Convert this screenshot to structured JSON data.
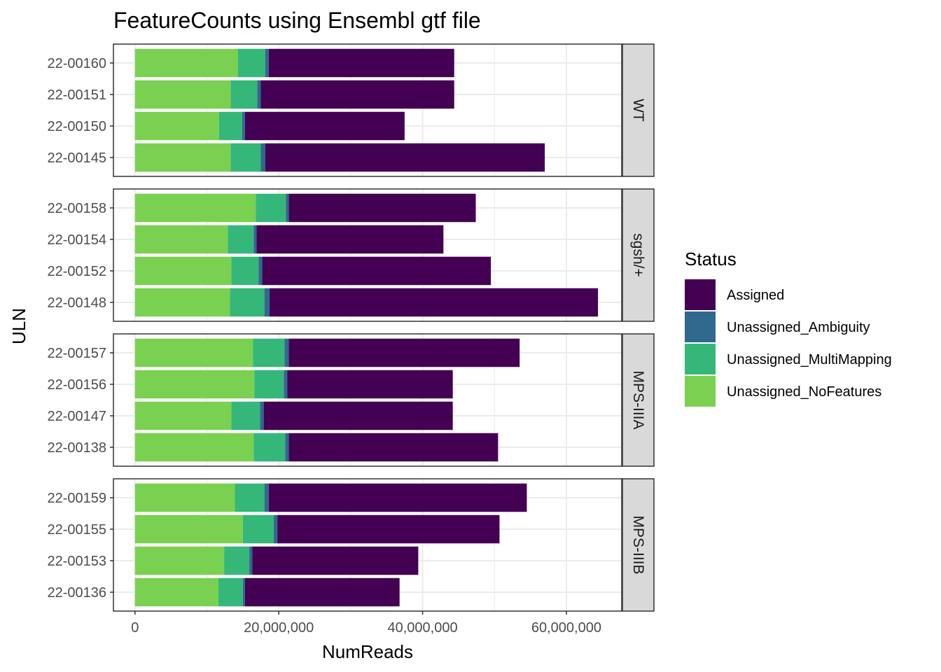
{
  "chart_data": {
    "type": "bar",
    "orientation": "horizontal",
    "stacked": true,
    "title": "FeatureCounts using Ensembl gtf file",
    "xlabel": "NumReads",
    "ylabel": "ULN",
    "xlim": [
      -3000000,
      67700000
    ],
    "x_ticks": [
      0,
      20000000,
      40000000,
      60000000
    ],
    "x_tick_labels": [
      "0",
      "20,000,000",
      "40,000,000",
      "60,000,000"
    ],
    "grid": true,
    "legend": {
      "title": "Status",
      "placement": "right",
      "entries": [
        "Assigned",
        "Unassigned_Ambiguity",
        "Unassigned_MultiMapping",
        "Unassigned_NoFeatures"
      ]
    },
    "series_colors": {
      "Assigned": "#440154",
      "Unassigned_Ambiguity": "#31688E",
      "Unassigned_MultiMapping": "#35B779",
      "Unassigned_NoFeatures": "#7AD151"
    },
    "stack_order": [
      "Unassigned_NoFeatures",
      "Unassigned_MultiMapping",
      "Unassigned_Ambiguity",
      "Assigned"
    ],
    "facets": [
      {
        "label": "WT",
        "samples": [
          {
            "uln": "22-00160",
            "Unassigned_NoFeatures": 14300000,
            "Unassigned_MultiMapping": 3800000,
            "Unassigned_Ambiguity": 500000,
            "Assigned": 25800000
          },
          {
            "uln": "22-00151",
            "Unassigned_NoFeatures": 13300000,
            "Unassigned_MultiMapping": 3700000,
            "Unassigned_Ambiguity": 500000,
            "Assigned": 26900000
          },
          {
            "uln": "22-00150",
            "Unassigned_NoFeatures": 11700000,
            "Unassigned_MultiMapping": 3200000,
            "Unassigned_Ambiguity": 400000,
            "Assigned": 22200000
          },
          {
            "uln": "22-00145",
            "Unassigned_NoFeatures": 13300000,
            "Unassigned_MultiMapping": 4200000,
            "Unassigned_Ambiguity": 600000,
            "Assigned": 38900000
          }
        ]
      },
      {
        "label": "sgsh/+",
        "samples": [
          {
            "uln": "22-00158",
            "Unassigned_NoFeatures": 16800000,
            "Unassigned_MultiMapping": 4200000,
            "Unassigned_Ambiguity": 400000,
            "Assigned": 26000000
          },
          {
            "uln": "22-00154",
            "Unassigned_NoFeatures": 12900000,
            "Unassigned_MultiMapping": 3600000,
            "Unassigned_Ambiguity": 400000,
            "Assigned": 26000000
          },
          {
            "uln": "22-00152",
            "Unassigned_NoFeatures": 13400000,
            "Unassigned_MultiMapping": 3800000,
            "Unassigned_Ambiguity": 500000,
            "Assigned": 31800000
          },
          {
            "uln": "22-00148",
            "Unassigned_NoFeatures": 13200000,
            "Unassigned_MultiMapping": 4800000,
            "Unassigned_Ambiguity": 700000,
            "Assigned": 45700000
          }
        ]
      },
      {
        "label": "MPS-IIIA",
        "samples": [
          {
            "uln": "22-00157",
            "Unassigned_NoFeatures": 16400000,
            "Unassigned_MultiMapping": 4400000,
            "Unassigned_Ambiguity": 600000,
            "Assigned": 32100000
          },
          {
            "uln": "22-00156",
            "Unassigned_NoFeatures": 16600000,
            "Unassigned_MultiMapping": 4100000,
            "Unassigned_Ambiguity": 500000,
            "Assigned": 23000000
          },
          {
            "uln": "22-00147",
            "Unassigned_NoFeatures": 13400000,
            "Unassigned_MultiMapping": 4000000,
            "Unassigned_Ambiguity": 500000,
            "Assigned": 26300000
          },
          {
            "uln": "22-00138",
            "Unassigned_NoFeatures": 16500000,
            "Unassigned_MultiMapping": 4400000,
            "Unassigned_Ambiguity": 500000,
            "Assigned": 29100000
          }
        ]
      },
      {
        "label": "MPS-IIIB",
        "samples": [
          {
            "uln": "22-00159",
            "Unassigned_NoFeatures": 13900000,
            "Unassigned_MultiMapping": 4100000,
            "Unassigned_Ambiguity": 600000,
            "Assigned": 35900000
          },
          {
            "uln": "22-00155",
            "Unassigned_NoFeatures": 15000000,
            "Unassigned_MultiMapping": 4300000,
            "Unassigned_Ambiguity": 500000,
            "Assigned": 30900000
          },
          {
            "uln": "22-00153",
            "Unassigned_NoFeatures": 12400000,
            "Unassigned_MultiMapping": 3500000,
            "Unassigned_Ambiguity": 400000,
            "Assigned": 23100000
          },
          {
            "uln": "22-00136",
            "Unassigned_NoFeatures": 11600000,
            "Unassigned_MultiMapping": 3400000,
            "Unassigned_Ambiguity": 300000,
            "Assigned": 21500000
          }
        ]
      }
    ]
  }
}
